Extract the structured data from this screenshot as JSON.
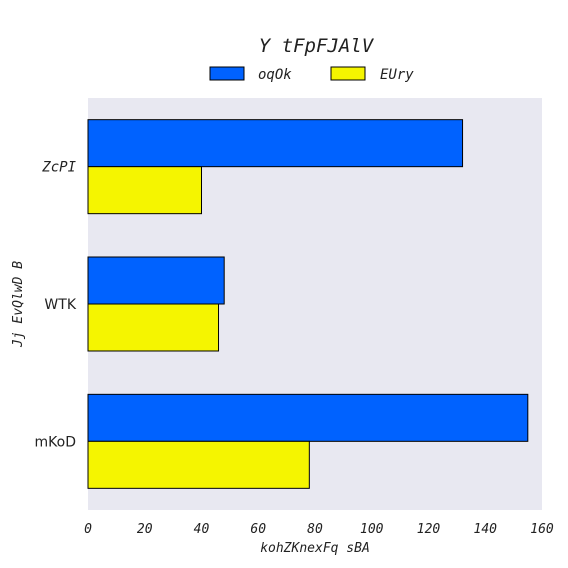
{
  "chart_data": {
    "type": "bar",
    "orientation": "horizontal",
    "title": "Y tFpFJAlV",
    "xlabel": "kohZKnexFq sBA",
    "ylabel": "Jj EvQlwD B",
    "categories": [
      "ZcPI",
      "WTK",
      "mKoD"
    ],
    "series": [
      {
        "name": "oqOk",
        "color": "#0062ff",
        "values": [
          132,
          48,
          155
        ]
      },
      {
        "name": "EUry",
        "color": "#f5f500",
        "values": [
          40,
          46,
          78
        ]
      }
    ],
    "xlim": [
      0,
      160
    ],
    "xticks": [
      0,
      20,
      40,
      60,
      80,
      100,
      120,
      140,
      160
    ],
    "grid": false,
    "legend_position": "top-center",
    "background": "#e8e8f1"
  }
}
